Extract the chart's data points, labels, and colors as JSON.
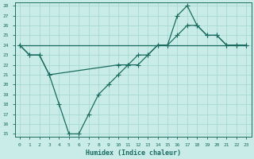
{
  "xlabel": "Humidex (Indice chaleur)",
  "bg_color": "#c9ece8",
  "grid_color": "#a8d8d2",
  "line_color": "#1a6b60",
  "xlim": [
    -0.5,
    23.5
  ],
  "ylim": [
    14.7,
    28.3
  ],
  "xticks": [
    0,
    1,
    2,
    3,
    4,
    5,
    6,
    7,
    8,
    9,
    10,
    11,
    12,
    13,
    14,
    15,
    16,
    17,
    18,
    19,
    20,
    21,
    22,
    23
  ],
  "yticks": [
    15,
    16,
    17,
    18,
    19,
    20,
    21,
    22,
    23,
    24,
    25,
    26,
    27,
    28
  ],
  "line1_x": [
    0,
    1,
    2,
    3,
    4,
    5,
    6,
    7,
    8,
    9,
    10,
    11,
    12,
    13,
    14,
    15,
    16,
    17,
    18,
    19,
    20,
    21,
    22,
    23
  ],
  "line1_y": [
    24,
    23,
    23,
    21,
    18,
    15,
    15,
    17,
    19,
    20,
    21,
    22,
    22,
    23,
    24,
    24,
    27,
    28,
    26,
    25,
    25,
    24,
    24,
    24
  ],
  "line2_x": [
    0,
    1,
    2,
    3,
    10,
    11,
    12,
    13,
    14,
    15,
    16,
    17,
    18,
    19,
    20,
    21,
    22,
    23
  ],
  "line2_y": [
    24,
    23,
    23,
    21,
    22,
    22,
    23,
    23,
    24,
    24,
    25,
    26,
    26,
    25,
    25,
    24,
    24,
    24
  ],
  "line3_x": [
    0,
    23
  ],
  "line3_y": [
    24,
    24
  ]
}
